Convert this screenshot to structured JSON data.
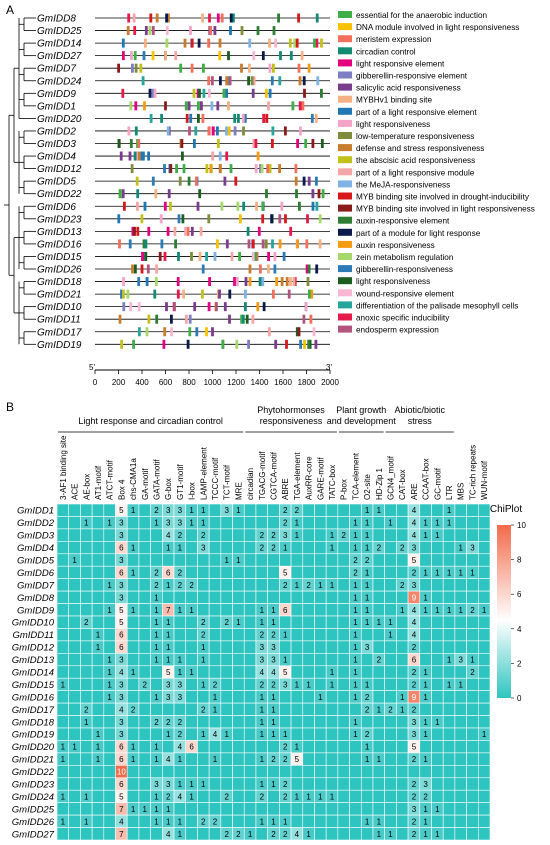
{
  "panelA": {
    "label": "A",
    "genes": [
      "GmIDD8",
      "GmIDD25",
      "GmIDD14",
      "GmIDD27",
      "GmIDD7",
      "GmIDD24",
      "GmIDD9",
      "GmIDD1",
      "GmIDD20",
      "GmIDD2",
      "GmIDD3",
      "GmIDD4",
      "GmIDD12",
      "GmIDD5",
      "GmIDD22",
      "GmIDD6",
      "GmIDD23",
      "GmIDD13",
      "GmIDD16",
      "GmIDD15",
      "GmIDD26",
      "GmIDD18",
      "GmIDD21",
      "GmIDD10",
      "GmIDD11",
      "GmIDD17",
      "GmIDD19"
    ],
    "legend": [
      {
        "label": "essential for the anaerobic induction",
        "color": "#3fae49"
      },
      {
        "label": "DNA module involved in light responsiveness",
        "color": "#f7c200"
      },
      {
        "label": "meristem expression",
        "color": "#f26f5b"
      },
      {
        "label": "circadian control",
        "color": "#138a72"
      },
      {
        "label": "light responsive element",
        "color": "#e4007f"
      },
      {
        "label": "gibberellin-responsive element",
        "color": "#7e7ec2"
      },
      {
        "label": "salicylic acid responsiveness",
        "color": "#7a3c8c"
      },
      {
        "label": "MYBHv1 binding site",
        "color": "#f4b183"
      },
      {
        "label": "part of a light responsive element",
        "color": "#1f78b4"
      },
      {
        "label": "light responsiveness",
        "color": "#f5a3c7"
      },
      {
        "label": "low-temperature responsiveness",
        "color": "#7f8c3d"
      },
      {
        "label": "defense and stress responsiveness",
        "color": "#c77c2e"
      },
      {
        "label": "the abscisic acid responsiveness",
        "color": "#c1c11c"
      },
      {
        "label": "part of a light responsive module",
        "color": "#f4a6a6"
      },
      {
        "label": "the MeJA-responsiveness",
        "color": "#7fb2e5"
      },
      {
        "label": "MYB binding site involved in drought-inducibility",
        "color": "#d7191c"
      },
      {
        "label": "MYB binding site involved in light responsiveness",
        "color": "#8b1a1a"
      },
      {
        "label": "auxin-responsive element",
        "color": "#2e7d32"
      },
      {
        "label": "part of a module for light response",
        "color": "#0b1a4a"
      },
      {
        "label": "auxin responsiveness",
        "color": "#f39c12"
      },
      {
        "label": "zein metabolism regulation",
        "color": "#a6d96a"
      },
      {
        "label": "gibberellin-responsiveness",
        "color": "#2c7bb6"
      },
      {
        "label": "light responsiveness",
        "color": "#1b5e20"
      },
      {
        "label": "wound-responsive element",
        "color": "#f7b6d2"
      },
      {
        "label": "differentiation of the palisade mesophyll cells",
        "color": "#26a69a"
      },
      {
        "label": "anoxic specific inducibility",
        "color": "#e6194b"
      },
      {
        "label": "endosperm expression",
        "color": "#b3547e"
      }
    ],
    "axis": {
      "left_end": "5'",
      "right_end": "3'",
      "min": 0,
      "max": 2000,
      "ticks": [
        "0",
        "200",
        "400",
        "600",
        "800",
        "1000",
        "1200",
        "1400",
        "1600",
        "1800",
        "2000"
      ]
    }
  },
  "panelB": {
    "label": "B",
    "groups": [
      {
        "label": "Light response and circadian control",
        "start": 0,
        "end": 15
      },
      {
        "label": "Phytohormonses\nresponsiveness",
        "start": 16,
        "end": 23
      },
      {
        "label": "Plant growth\nand development",
        "start": 24,
        "end": 27
      },
      {
        "label": "Abiotic/biotic\nstress",
        "start": 28,
        "end": 33
      }
    ],
    "colorbar": {
      "title": "ChiPlot",
      "ticks": [
        "0",
        "2",
        "4",
        "6",
        "8",
        "10"
      ],
      "min": 0,
      "max": 10
    }
  },
  "chart_data": {
    "type": "heatmap",
    "columns": [
      "3-AF1 binding site",
      "ACE",
      "AE-box",
      "AT1-motif",
      "ATCT-motif",
      "Box 4",
      "chs-CMA1a",
      "GA-motif",
      "GATA-motif",
      "G-box",
      "GT1-motif",
      "I-box",
      "LAMP-element",
      "TCCC-motif",
      "TCT-motif",
      "MRE",
      "circadian",
      "TGACG-motif",
      "CGTCA-motif",
      "ABRE",
      "TGA-element",
      "AuxRR-core",
      "GARE-motif",
      "TATC-box",
      "P-box",
      "TCA-element",
      "O2-site",
      "HD-Zip 1",
      "GCN4_motif",
      "CAT-box",
      "ARE",
      "CCAAT-box",
      "GC-motif",
      "LTR",
      "MBS",
      "TC-rich repeats",
      "WUN-motif"
    ],
    "rows": [
      "GmIDD1",
      "GmIDD2",
      "GmIDD3",
      "GmIDD4",
      "GmIDD5",
      "GmIDD6",
      "GmIDD7",
      "GmIDD8",
      "GmIDD9",
      "GmIDD10",
      "GmIDD11",
      "GmIDD12",
      "GmIDD13",
      "GmIDD14",
      "GmIDD15",
      "GmIDD16",
      "GmIDD17",
      "GmIDD18",
      "GmIDD19",
      "GmIDD20",
      "GmIDD21",
      "GmIDD22",
      "GmIDD23",
      "GmIDD24",
      "GmIDD25",
      "GmIDD26",
      "GmIDD27"
    ],
    "values": [
      [
        0,
        0,
        0,
        0,
        0,
        5,
        1,
        0,
        2,
        3,
        3,
        1,
        1,
        0,
        3,
        1,
        0,
        0,
        0,
        2,
        2,
        0,
        0,
        0,
        0,
        0,
        1,
        1,
        0,
        0,
        4,
        0,
        0,
        1,
        0,
        0,
        0
      ],
      [
        0,
        0,
        1,
        0,
        1,
        3,
        0,
        0,
        1,
        3,
        3,
        1,
        1,
        0,
        0,
        0,
        0,
        0,
        0,
        2,
        1,
        0,
        0,
        0,
        0,
        1,
        1,
        0,
        1,
        0,
        4,
        1,
        1,
        1,
        0,
        0,
        0
      ],
      [
        0,
        0,
        0,
        0,
        0,
        3,
        0,
        0,
        0,
        4,
        2,
        0,
        2,
        0,
        0,
        0,
        0,
        2,
        2,
        3,
        1,
        0,
        0,
        1,
        2,
        1,
        1,
        0,
        0,
        0,
        4,
        1,
        1,
        0,
        0,
        0,
        0
      ],
      [
        0,
        0,
        0,
        0,
        0,
        6,
        1,
        0,
        0,
        1,
        1,
        0,
        3,
        0,
        0,
        0,
        0,
        2,
        2,
        1,
        0,
        0,
        0,
        1,
        0,
        1,
        1,
        2,
        0,
        2,
        3,
        0,
        0,
        0,
        1,
        3,
        0
      ],
      [
        0,
        1,
        0,
        0,
        0,
        3,
        0,
        0,
        0,
        0,
        0,
        0,
        0,
        0,
        1,
        1,
        0,
        0,
        0,
        0,
        0,
        0,
        0,
        0,
        0,
        2,
        2,
        0,
        0,
        0,
        5,
        0,
        0,
        0,
        0,
        0,
        0
      ],
      [
        0,
        0,
        0,
        0,
        0,
        6,
        1,
        0,
        2,
        6,
        2,
        0,
        0,
        0,
        0,
        0,
        0,
        0,
        0,
        5,
        0,
        0,
        0,
        0,
        0,
        2,
        1,
        0,
        0,
        0,
        2,
        1,
        1,
        1,
        1,
        1,
        0
      ],
      [
        0,
        0,
        0,
        0,
        1,
        3,
        0,
        0,
        2,
        1,
        2,
        2,
        0,
        0,
        0,
        0,
        0,
        0,
        0,
        2,
        1,
        2,
        1,
        1,
        0,
        1,
        1,
        0,
        0,
        2,
        3,
        0,
        0,
        0,
        0,
        0,
        0
      ],
      [
        0,
        0,
        0,
        0,
        0,
        3,
        0,
        0,
        1,
        0,
        0,
        0,
        0,
        0,
        0,
        0,
        0,
        0,
        0,
        0,
        0,
        0,
        0,
        0,
        0,
        1,
        1,
        0,
        0,
        0,
        9,
        1,
        0,
        0,
        0,
        0,
        0
      ],
      [
        0,
        0,
        0,
        0,
        1,
        5,
        1,
        0,
        1,
        7,
        1,
        1,
        0,
        0,
        0,
        0,
        0,
        1,
        1,
        6,
        0,
        0,
        0,
        0,
        0,
        1,
        1,
        0,
        0,
        1,
        4,
        1,
        1,
        1,
        1,
        2,
        1
      ],
      [
        0,
        0,
        2,
        0,
        0,
        5,
        0,
        0,
        1,
        1,
        0,
        0,
        2,
        0,
        2,
        1,
        0,
        1,
        1,
        0,
        0,
        0,
        0,
        0,
        0,
        1,
        1,
        1,
        1,
        0,
        4,
        0,
        0,
        0,
        0,
        0,
        0
      ],
      [
        0,
        0,
        0,
        1,
        0,
        6,
        0,
        0,
        1,
        1,
        0,
        0,
        2,
        0,
        0,
        0,
        0,
        2,
        2,
        1,
        0,
        0,
        0,
        0,
        0,
        1,
        0,
        0,
        1,
        0,
        4,
        0,
        0,
        0,
        0,
        0,
        0
      ],
      [
        0,
        0,
        0,
        1,
        0,
        6,
        0,
        0,
        1,
        1,
        0,
        0,
        1,
        0,
        0,
        0,
        0,
        3,
        3,
        0,
        0,
        0,
        0,
        0,
        0,
        1,
        3,
        0,
        0,
        0,
        2,
        0,
        0,
        0,
        0,
        0,
        0
      ],
      [
        0,
        0,
        0,
        0,
        1,
        3,
        0,
        0,
        1,
        1,
        1,
        0,
        1,
        0,
        0,
        0,
        0,
        3,
        3,
        1,
        0,
        0,
        0,
        0,
        0,
        1,
        0,
        2,
        0,
        0,
        6,
        0,
        0,
        1,
        3,
        1,
        0
      ],
      [
        0,
        0,
        0,
        0,
        1,
        4,
        1,
        0,
        0,
        5,
        1,
        1,
        0,
        0,
        0,
        0,
        0,
        4,
        4,
        5,
        0,
        0,
        0,
        1,
        0,
        1,
        0,
        0,
        0,
        0,
        2,
        1,
        0,
        0,
        0,
        2,
        0
      ],
      [
        1,
        0,
        0,
        0,
        1,
        3,
        0,
        2,
        0,
        3,
        3,
        0,
        1,
        2,
        0,
        0,
        0,
        2,
        2,
        3,
        1,
        1,
        0,
        1,
        0,
        1,
        1,
        0,
        0,
        0,
        2,
        1,
        0,
        1,
        1,
        0,
        0
      ],
      [
        0,
        0,
        0,
        0,
        1,
        3,
        0,
        0,
        1,
        3,
        3,
        0,
        0,
        1,
        0,
        0,
        0,
        1,
        1,
        0,
        0,
        0,
        1,
        0,
        0,
        1,
        2,
        0,
        0,
        1,
        9,
        1,
        0,
        0,
        0,
        0,
        0
      ],
      [
        0,
        0,
        2,
        0,
        0,
        4,
        2,
        0,
        0,
        0,
        0,
        0,
        2,
        1,
        0,
        0,
        0,
        1,
        1,
        0,
        0,
        0,
        0,
        0,
        0,
        0,
        2,
        1,
        2,
        1,
        2,
        0,
        0,
        0,
        0,
        0,
        0
      ],
      [
        0,
        0,
        1,
        0,
        0,
        3,
        0,
        0,
        2,
        2,
        2,
        0,
        0,
        0,
        0,
        0,
        0,
        1,
        1,
        0,
        0,
        0,
        0,
        0,
        0,
        1,
        0,
        0,
        0,
        0,
        3,
        1,
        1,
        0,
        0,
        0,
        0
      ],
      [
        0,
        0,
        0,
        1,
        0,
        3,
        0,
        0,
        0,
        1,
        2,
        0,
        1,
        4,
        1,
        0,
        0,
        1,
        1,
        1,
        0,
        0,
        0,
        0,
        0,
        1,
        2,
        0,
        0,
        0,
        3,
        1,
        0,
        0,
        0,
        0,
        1
      ],
      [
        1,
        1,
        0,
        1,
        0,
        6,
        1,
        0,
        1,
        0,
        4,
        6,
        0,
        0,
        0,
        0,
        0,
        0,
        0,
        2,
        1,
        0,
        0,
        0,
        0,
        0,
        1,
        0,
        0,
        0,
        5,
        0,
        0,
        0,
        0,
        0,
        0
      ],
      [
        1,
        0,
        0,
        1,
        0,
        6,
        1,
        0,
        1,
        4,
        1,
        0,
        0,
        1,
        0,
        0,
        0,
        1,
        2,
        2,
        5,
        0,
        0,
        0,
        0,
        0,
        1,
        1,
        0,
        0,
        2,
        1,
        0,
        0,
        0,
        0,
        0
      ],
      [
        0,
        0,
        0,
        0,
        0,
        10,
        0,
        0,
        0,
        0,
        0,
        0,
        0,
        0,
        0,
        0,
        0,
        0,
        0,
        0,
        0,
        0,
        0,
        0,
        0,
        0,
        0,
        0,
        0,
        0,
        0,
        0,
        0,
        0,
        0,
        0,
        0
      ],
      [
        0,
        0,
        0,
        0,
        0,
        6,
        0,
        0,
        3,
        3,
        1,
        1,
        1,
        0,
        0,
        0,
        0,
        1,
        1,
        2,
        0,
        0,
        0,
        0,
        0,
        0,
        0,
        0,
        0,
        0,
        2,
        3,
        0,
        0,
        0,
        0,
        0
      ],
      [
        1,
        0,
        1,
        0,
        0,
        5,
        0,
        0,
        1,
        2,
        4,
        1,
        0,
        0,
        2,
        0,
        0,
        2,
        0,
        2,
        1,
        1,
        1,
        1,
        0,
        0,
        0,
        0,
        0,
        0,
        2,
        2,
        0,
        0,
        0,
        0,
        0
      ],
      [
        0,
        0,
        0,
        0,
        0,
        7,
        1,
        1,
        1,
        1,
        0,
        0,
        0,
        0,
        0,
        0,
        0,
        0,
        0,
        0,
        0,
        0,
        0,
        0,
        0,
        0,
        0,
        0,
        0,
        0,
        3,
        1,
        1,
        0,
        0,
        0,
        0
      ],
      [
        1,
        0,
        1,
        0,
        0,
        4,
        0,
        0,
        1,
        1,
        1,
        0,
        2,
        2,
        0,
        0,
        0,
        1,
        1,
        1,
        0,
        0,
        0,
        0,
        0,
        0,
        1,
        1,
        0,
        0,
        2,
        1,
        0,
        0,
        0,
        0,
        0
      ],
      [
        0,
        0,
        0,
        0,
        0,
        7,
        0,
        0,
        0,
        4,
        1,
        0,
        0,
        0,
        2,
        2,
        1,
        0,
        2,
        2,
        4,
        1,
        0,
        0,
        0,
        0,
        0,
        1,
        1,
        0,
        2,
        1,
        1,
        0,
        0,
        0,
        0
      ]
    ],
    "colorscale": {
      "min": 0,
      "max": 10,
      "low": "#2ec4c0",
      "mid": "#ffffff",
      "high": "#f26b4c"
    }
  }
}
